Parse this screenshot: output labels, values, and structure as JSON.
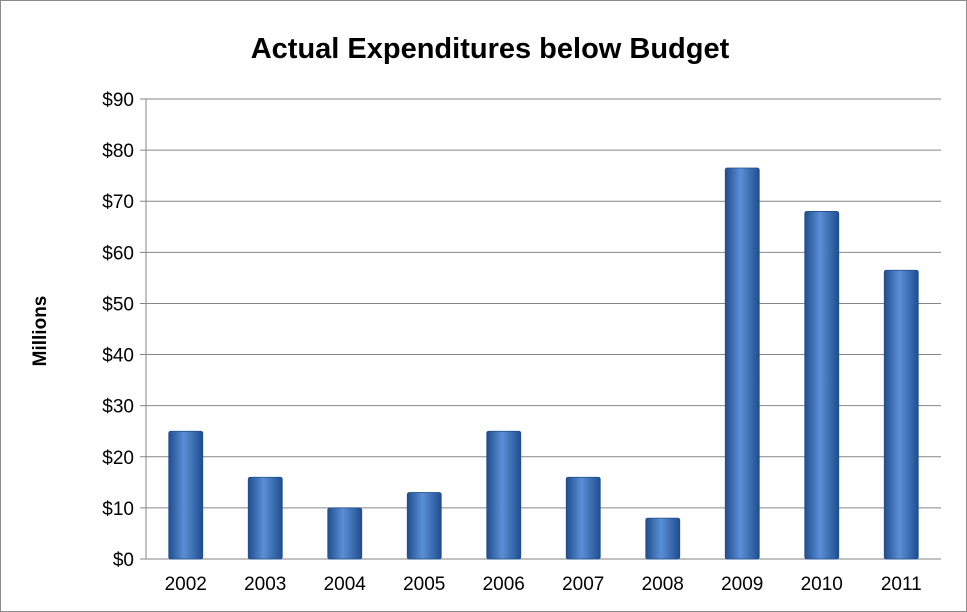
{
  "chart_data": {
    "type": "bar",
    "title": "Actual Expenditures below Budget",
    "xlabel": "",
    "ylabel": "Millions",
    "categories": [
      "2002",
      "2003",
      "2004",
      "2005",
      "2006",
      "2007",
      "2008",
      "2009",
      "2010",
      "2011"
    ],
    "values": [
      25,
      16,
      10,
      13,
      25,
      16,
      8,
      76.5,
      68,
      56.5
    ],
    "ylim": [
      0,
      90
    ],
    "yticks": [
      0,
      10,
      20,
      30,
      40,
      50,
      60,
      70,
      80,
      90
    ],
    "ytick_labels": [
      "$0",
      "$10",
      "$20",
      "$30",
      "$40",
      "$50",
      "$60",
      "$70",
      "$80",
      "$90"
    ],
    "grid": true,
    "legend": "none",
    "colors": {
      "bar_light": "#5b8fd6",
      "bar_mid": "#3a6fb9",
      "bar_dark": "#1f4e8f",
      "grid": "#868686",
      "axis": "#868686"
    }
  }
}
